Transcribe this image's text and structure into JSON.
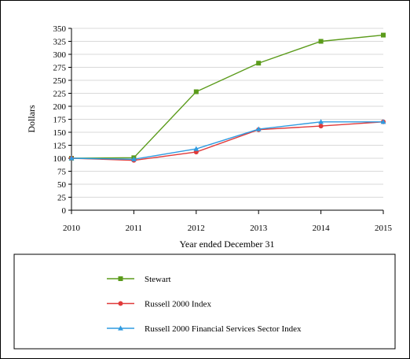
{
  "chart_data": {
    "type": "line",
    "title": "",
    "xlabel": "Year ended December 31",
    "ylabel": "Dollars",
    "x": [
      2010,
      2011,
      2012,
      2013,
      2014,
      2015
    ],
    "ylim": [
      0,
      350
    ],
    "yticks": [
      0,
      25,
      50,
      75,
      100,
      125,
      150,
      175,
      200,
      225,
      250,
      275,
      300,
      325,
      350
    ],
    "grid": "horizontal",
    "legend_position": "bottom",
    "series": [
      {
        "name": "Stewart",
        "color": "#5b9b1b",
        "marker": "square",
        "values": [
          100,
          101,
          228,
          283,
          325,
          337
        ]
      },
      {
        "name": "Russell 2000 Index",
        "color": "#e03a3a",
        "marker": "circle",
        "values": [
          100,
          96,
          112,
          155,
          162,
          170
        ]
      },
      {
        "name": "Russell 2000 Financial Services Sector Index",
        "color": "#2f9be0",
        "marker": "triangle",
        "values": [
          100,
          98,
          118,
          156,
          170,
          170
        ]
      }
    ]
  }
}
